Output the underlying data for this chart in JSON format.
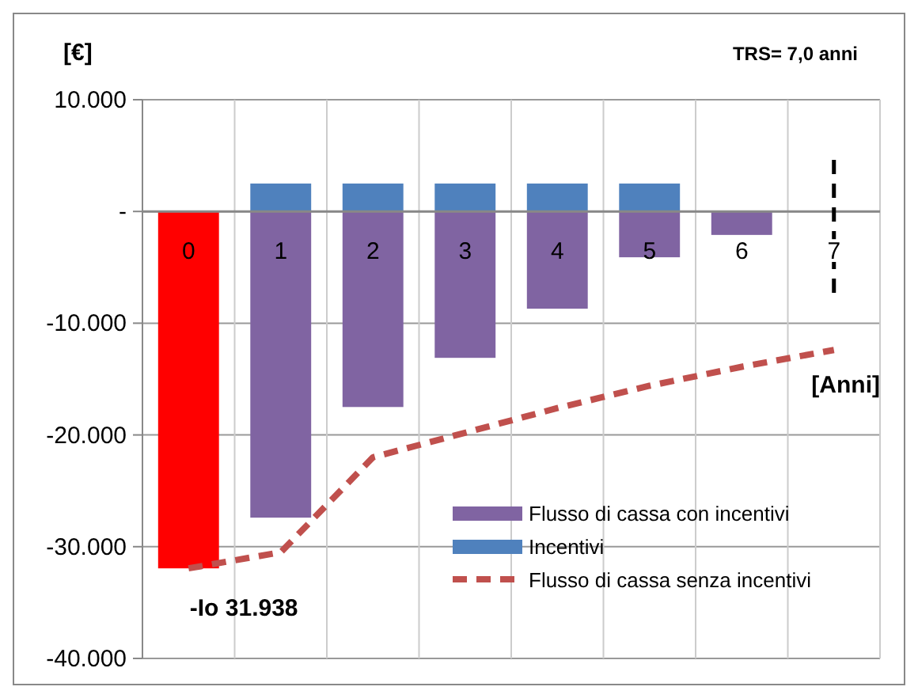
{
  "chart_data": {
    "type": "bar",
    "stacked": true,
    "ylabel": "[€]",
    "xlabel": "[Anni]",
    "categories": [
      "0",
      "1",
      "2",
      "3",
      "4",
      "5",
      "6",
      "7"
    ],
    "series": [
      {
        "name": "Flusso di cassa con incentivi",
        "color": "#8064a2",
        "colors": [
          "#ff0000",
          "#8064a2",
          "#8064a2",
          "#8064a2",
          "#8064a2",
          "#8064a2",
          "#8064a2",
          "#8064a2"
        ],
        "values": [
          -31938,
          -27400,
          -17500,
          -13100,
          -8700,
          -4100,
          -2100,
          null
        ]
      },
      {
        "name": "Incentivi",
        "color": "#4f81bd",
        "values": [
          null,
          2500,
          2500,
          2500,
          2500,
          2500,
          null,
          null
        ]
      },
      {
        "name": "Flusso di cassa senza incentivi",
        "type": "line",
        "line_style": "dashed",
        "color": "#c0504d",
        "values": [
          -31938,
          -30500,
          -22000,
          -19800,
          -17600,
          -15600,
          -13900,
          -12400
        ]
      }
    ],
    "ylim": [
      -40000,
      10000
    ],
    "yticks": [
      {
        "value": -40000,
        "label": "-40.000"
      },
      {
        "value": -30000,
        "label": "-30.000"
      },
      {
        "value": -20000,
        "label": "-20.000"
      },
      {
        "value": -10000,
        "label": "-10.000"
      },
      {
        "value": 0,
        "label": "-"
      },
      {
        "value": 10000,
        "label": "10.000"
      }
    ],
    "grid": true,
    "legend": "bottom right",
    "ref_lines": [
      {
        "axis": "x",
        "value": "7",
        "color": "#000000",
        "line_style": "dashed"
      }
    ],
    "annotations": [
      "TRS= 7,0 anni",
      {
        "text": "-Io 31.938",
        "x": "0",
        "y": -31938
      }
    ]
  }
}
